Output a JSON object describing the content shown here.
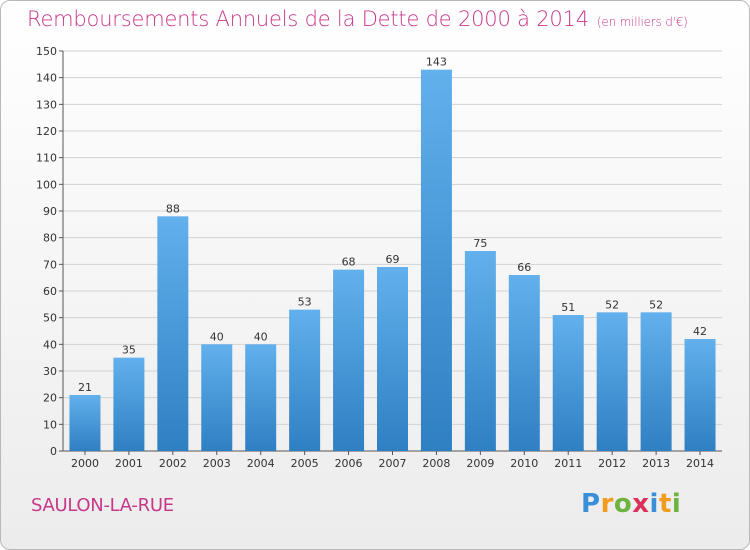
{
  "header": {
    "title": "Remboursements Annuels de la Dette de 2000 à 2014",
    "subtitle": "(en milliers d'€)"
  },
  "footer": {
    "place": "SAULON-LA-RUE",
    "logo": [
      "P",
      "r",
      "o",
      "x",
      "i",
      "t",
      "i"
    ]
  },
  "colors": {
    "title": "#c8388a",
    "bar_top": "#62b0ec",
    "bar_bottom": "#2f7fc3",
    "logo": [
      "#3a8fd8",
      "#f29c1f",
      "#6cb33f",
      "#d9315a",
      "#3a8fd8",
      "#f29c1f",
      "#6cb33f"
    ]
  },
  "chart_data": {
    "type": "bar",
    "categories": [
      "2000",
      "2001",
      "2002",
      "2003",
      "2004",
      "2005",
      "2006",
      "2007",
      "2008",
      "2009",
      "2010",
      "2011",
      "2012",
      "2013",
      "2014"
    ],
    "values": [
      21,
      35,
      88,
      40,
      40,
      53,
      68,
      69,
      143,
      75,
      66,
      51,
      52,
      52,
      42
    ],
    "title": "Remboursements Annuels de la Dette de 2000 à 2014",
    "ylim": [
      0,
      150
    ],
    "yticks": [
      0,
      10,
      20,
      30,
      40,
      50,
      60,
      70,
      80,
      90,
      100,
      110,
      120,
      130,
      140,
      150
    ],
    "grid": true,
    "legend": "none"
  }
}
